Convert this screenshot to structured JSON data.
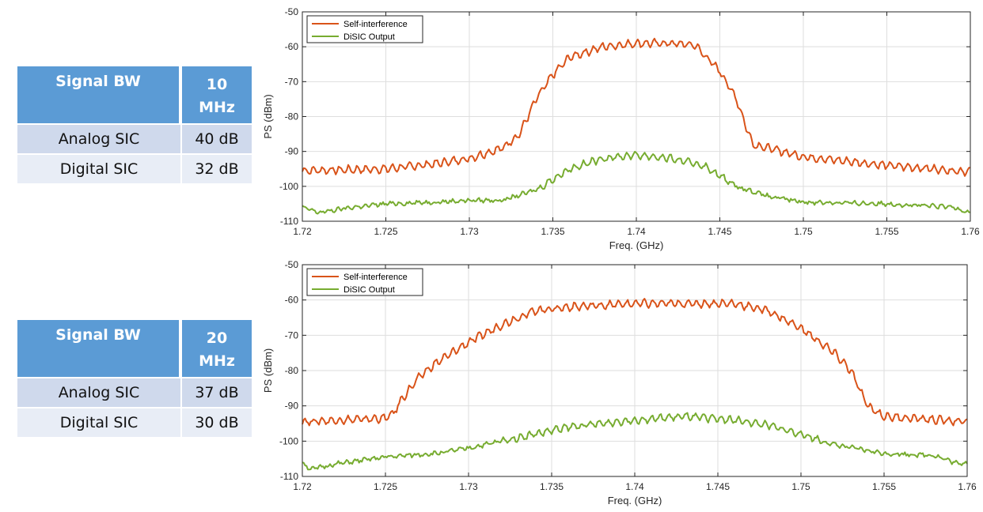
{
  "tables": [
    {
      "header": {
        "label": "Signal BW",
        "value_num": "10",
        "value_unit": "MHz"
      },
      "rows": [
        {
          "label": "Analog SIC",
          "value": "40 dB"
        },
        {
          "label": "Digital SIC",
          "value": "32 dB"
        }
      ]
    },
    {
      "header": {
        "label": "Signal BW",
        "value_num": "20",
        "value_unit": "MHz"
      },
      "rows": [
        {
          "label": "Analog SIC",
          "value": "37 dB"
        },
        {
          "label": "Digital SIC",
          "value": "30 dB"
        }
      ]
    }
  ],
  "colors": {
    "self_interference": "#d95319",
    "disic_output": "#77ac30",
    "table_header": "#5b9bd5",
    "table_row_dark": "#cfd9ec",
    "table_row_light": "#e8edf6"
  },
  "chart_data": [
    {
      "type": "line",
      "xlabel": "Freq. (GHz)",
      "ylabel": "PS (dBm)",
      "xlim": [
        1.72,
        1.76
      ],
      "ylim": [
        -110,
        -50
      ],
      "xticks": [
        1.72,
        1.725,
        1.73,
        1.735,
        1.74,
        1.745,
        1.75,
        1.755,
        1.76
      ],
      "xtick_labels": [
        "1.72",
        "1.725",
        "1.73",
        "1.735",
        "1.74",
        "1.745",
        "1.75",
        "1.755",
        "1.76"
      ],
      "yticks": [
        -110,
        -100,
        -90,
        -80,
        -70,
        -60,
        -50
      ],
      "ytick_labels": [
        "-110",
        "-100",
        "-90",
        "-80",
        "-70",
        "-60",
        "-50"
      ],
      "grid": true,
      "legend": "top-left",
      "series": [
        {
          "name": "Self-interference",
          "color": "#d95319",
          "x": [
            1.72,
            1.725,
            1.728,
            1.73,
            1.732,
            1.733,
            1.7335,
            1.734,
            1.735,
            1.736,
            1.738,
            1.74,
            1.742,
            1.7435,
            1.744,
            1.745,
            1.746,
            1.7465,
            1.747,
            1.75,
            1.755,
            1.76
          ],
          "y": [
            -95.5,
            -95,
            -93.5,
            -92,
            -89,
            -85,
            -80,
            -75,
            -68,
            -63,
            -60,
            -59,
            -59,
            -59.5,
            -62,
            -67,
            -75,
            -82,
            -88,
            -91.5,
            -94,
            -95.8
          ]
        },
        {
          "name": "DiSIC Output",
          "color": "#77ac30",
          "x": [
            1.72,
            1.721,
            1.723,
            1.725,
            1.728,
            1.73,
            1.732,
            1.734,
            1.735,
            1.736,
            1.738,
            1.74,
            1.742,
            1.744,
            1.745,
            1.746,
            1.748,
            1.75,
            1.755,
            1.759,
            1.76
          ],
          "y": [
            -106,
            -107.5,
            -106,
            -105,
            -104.5,
            -104,
            -104,
            -101,
            -98,
            -95,
            -92,
            -91,
            -92,
            -94,
            -97,
            -100,
            -103,
            -104.5,
            -105,
            -106,
            -107.5
          ]
        }
      ]
    },
    {
      "type": "line",
      "xlabel": "Freq. (GHz)",
      "ylabel": "PS (dBm)",
      "xlim": [
        1.72,
        1.76
      ],
      "ylim": [
        -110,
        -50
      ],
      "xticks": [
        1.72,
        1.725,
        1.73,
        1.735,
        1.74,
        1.745,
        1.75,
        1.755,
        1.76
      ],
      "xtick_labels": [
        "1.72",
        "1.725",
        "1.73",
        "1.735",
        "1.74",
        "1.745",
        "1.75",
        "1.755",
        "1.76"
      ],
      "yticks": [
        -110,
        -100,
        -90,
        -80,
        -70,
        -60,
        -50
      ],
      "ytick_labels": [
        "-110",
        "-100",
        "-90",
        "-80",
        "-70",
        "-60",
        "-50"
      ],
      "grid": true,
      "legend": "top-left",
      "series": [
        {
          "name": "Self-interference",
          "color": "#d95319",
          "x": [
            1.72,
            1.725,
            1.7255,
            1.726,
            1.727,
            1.728,
            1.73,
            1.732,
            1.734,
            1.736,
            1.74,
            1.744,
            1.746,
            1.748,
            1.75,
            1.752,
            1.753,
            1.754,
            1.755,
            1.76
          ],
          "y": [
            -94.5,
            -93.5,
            -92,
            -88,
            -82,
            -78,
            -72,
            -67,
            -63,
            -62,
            -61,
            -61,
            -61,
            -63,
            -68,
            -75,
            -80,
            -90,
            -93,
            -94.5
          ]
        },
        {
          "name": "DiSIC Output",
          "color": "#77ac30",
          "x": [
            1.72,
            1.7205,
            1.722,
            1.725,
            1.728,
            1.73,
            1.733,
            1.736,
            1.74,
            1.743,
            1.746,
            1.748,
            1.75,
            1.752,
            1.755,
            1.758,
            1.7595,
            1.76
          ],
          "y": [
            -106,
            -108,
            -106.5,
            -104.5,
            -103.5,
            -102,
            -99,
            -96,
            -94,
            -93,
            -94,
            -95.5,
            -98,
            -101,
            -103.5,
            -104,
            -106.5,
            -106
          ]
        }
      ]
    }
  ]
}
